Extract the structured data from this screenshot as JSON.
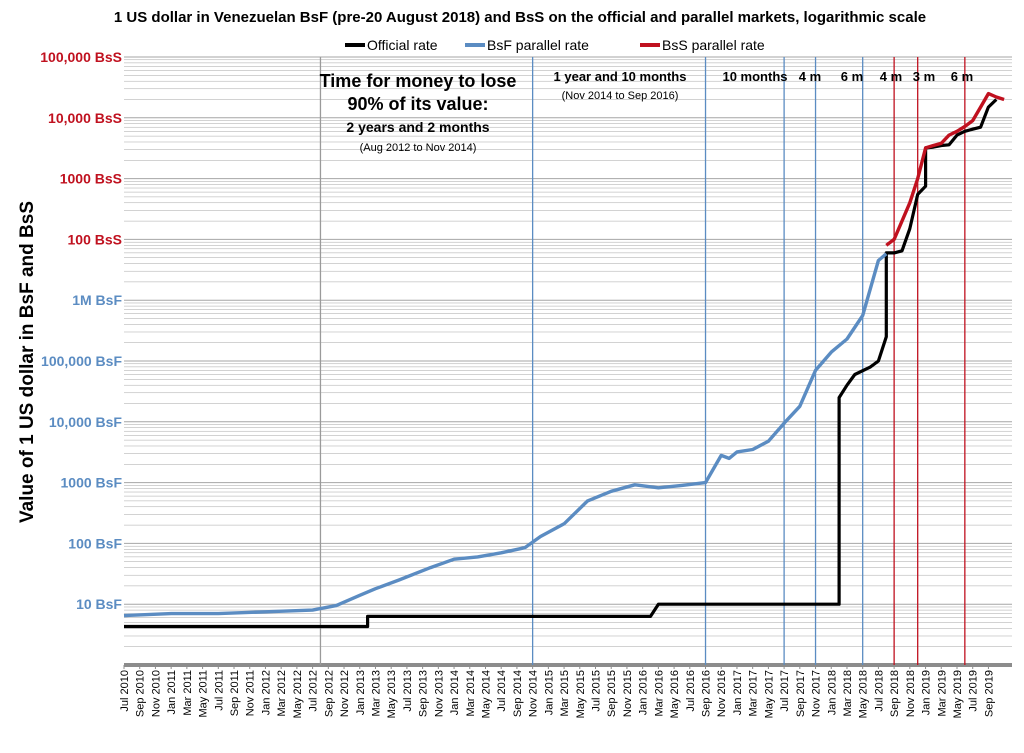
{
  "chart_data": {
    "type": "line",
    "title": "1 US dollar in Venezuelan BsF (pre-20 August 2018) and BsS on the official and parallel markets, logarithmic scale",
    "ylabel": "Value of 1 US dollar in BsF and BsS",
    "xlabel": "",
    "y_scale": "log",
    "ylim_bsf": [
      1,
      10000000000
    ],
    "grid": true,
    "legend_position": "top",
    "colors": {
      "official": "#000000",
      "bsf": "#5b8cc2",
      "bss": "#c0111f",
      "grid": "#a6a6a6",
      "bsf_label": "#5b8cc2",
      "bss_label": "#c0111f"
    },
    "y_ticks_bsf": [
      {
        "label": "10 BsF",
        "value": 10
      },
      {
        "label": "100 BsF",
        "value": 100
      },
      {
        "label": "1000 BsF",
        "value": 1000
      },
      {
        "label": "10,000 BsF",
        "value": 10000
      },
      {
        "label": "100,000 BsF",
        "value": 100000
      },
      {
        "label": "1M BsF",
        "value": 1000000
      }
    ],
    "y_ticks_bss": [
      {
        "label": "100 BsS",
        "value": 10000000
      },
      {
        "label": "1000 BsS",
        "value": 100000000
      },
      {
        "label": "10,000 BsS",
        "value": 1000000000
      },
      {
        "label": "100,000 BsS",
        "value": 10000000000
      }
    ],
    "x_ticks": [
      "Jul 2010",
      "Sep 2010",
      "Nov 2010",
      "Jan 2011",
      "Mar 2011",
      "May 2011",
      "Jul 2011",
      "Sep 2011",
      "Nov 2011",
      "Jan 2012",
      "Mar 2012",
      "May 2012",
      "Jul 2012",
      "Sep 2012",
      "Nov 2012",
      "Jan 2013",
      "Mar 2013",
      "May 2013",
      "Jul 2013",
      "Sep 2013",
      "Nov 2013",
      "Jan 2014",
      "Mar 2014",
      "May 2014",
      "Jul 2014",
      "Sep 2014",
      "Nov 2014",
      "Jan 2015",
      "Mar 2015",
      "May 2015",
      "Jul 2015",
      "Sep 2015",
      "Nov 2015",
      "Jan 2016",
      "Mar 2016",
      "May 2016",
      "Jul 2016",
      "Sep 2016",
      "Nov 2016",
      "Jan 2017",
      "Mar 2017",
      "May 2017",
      "Jul 2017",
      "Sep 2017",
      "Nov 2017",
      "Jan 2018",
      "Mar 2018",
      "May 2018",
      "Jul 2018",
      "Sep 2018",
      "Nov 2018",
      "Jan 2019",
      "Mar 2019",
      "May 2019",
      "Jul 2019",
      "Sep 2019"
    ],
    "series": [
      {
        "name": "Official rate",
        "color": "#000000",
        "x": [
          "2010-07",
          "2013-02",
          "2013-02",
          "2016-02",
          "2016-03",
          "2018-02",
          "2018-02",
          "2018-03",
          "2018-04",
          "2018-06",
          "2018-07",
          "2018-08",
          "2018-08",
          "2018-09",
          "2018-10",
          "2018-11",
          "2018-12",
          "2019-01",
          "2019-01",
          "2019-02",
          "2019-03",
          "2019-04",
          "2019-05",
          "2019-06",
          "2019-07",
          "2019-08",
          "2019-09",
          "2019-10"
        ],
        "values": [
          4.3,
          4.3,
          6.3,
          6.3,
          10,
          10,
          25000,
          40000,
          60000,
          80000,
          100000,
          250000,
          6000000,
          6000000,
          6500000,
          15000000,
          55000000,
          75000000,
          320000000,
          330000000,
          350000000,
          360000000,
          520000000,
          600000000,
          650000000,
          700000000,
          1500000000,
          2000000000
        ]
      },
      {
        "name": "BsF parallel rate",
        "color": "#5b8cc2",
        "x": [
          "2010-07",
          "2011-01",
          "2011-07",
          "2012-01",
          "2012-07",
          "2012-10",
          "2013-01",
          "2013-03",
          "2013-06",
          "2013-10",
          "2014-01",
          "2014-04",
          "2014-07",
          "2014-10",
          "2014-12",
          "2015-03",
          "2015-06",
          "2015-09",
          "2015-12",
          "2016-03",
          "2016-06",
          "2016-09",
          "2016-11",
          "2016-12",
          "2017-01",
          "2017-03",
          "2017-05",
          "2017-07",
          "2017-09",
          "2017-11",
          "2018-01",
          "2018-03",
          "2018-05",
          "2018-07",
          "2018-08"
        ],
        "values": [
          6.5,
          7.0,
          7.0,
          7.5,
          8.0,
          9.5,
          14,
          18,
          25,
          40,
          55,
          60,
          70,
          85,
          130,
          210,
          500,
          720,
          920,
          820,
          900,
          1000,
          2800,
          2500,
          3200,
          3500,
          4800,
          9500,
          18000,
          70000,
          140000,
          230000,
          560000,
          4500000,
          5800000
        ]
      },
      {
        "name": "BsS parallel rate",
        "color": "#c0111f",
        "x": [
          "2018-08",
          "2018-09",
          "2018-10",
          "2018-11",
          "2018-12",
          "2019-01",
          "2019-02",
          "2019-03",
          "2019-04",
          "2019-05",
          "2019-06",
          "2019-07",
          "2019-08",
          "2019-09",
          "2019-10",
          "2019-11"
        ],
        "values": [
          80,
          100,
          200,
          400,
          1000,
          3200,
          3500,
          3800,
          5200,
          6000,
          7200,
          9000,
          15000,
          25000,
          22000,
          20000
        ],
        "value_units": "BsS"
      }
    ],
    "period_lines": [
      {
        "x": "2012-08",
        "color": "#9a9a9a"
      },
      {
        "x": "2014-11",
        "color": "#5b8cc2"
      },
      {
        "x": "2016-09",
        "color": "#5b8cc2"
      },
      {
        "x": "2017-07",
        "color": "#5b8cc2"
      },
      {
        "x": "2017-11",
        "color": "#5b8cc2"
      },
      {
        "x": "2018-05",
        "color": "#5b8cc2"
      },
      {
        "x": "2018-09",
        "color": "#c0111f"
      },
      {
        "x": "2018-12",
        "color": "#c0111f"
      },
      {
        "x": "2019-06",
        "color": "#c0111f"
      }
    ],
    "annotations": {
      "main_line1": "Time for money to lose",
      "main_line2": "90% of its value:",
      "main_line3": "2 years and 2 months",
      "main_line4": "(Aug 2012 to Nov 2014)",
      "p2_line1": "1 year and 10 months",
      "p2_line2": "(Nov 2014  to Sep 2016)",
      "p3": "10 months",
      "p4": "4 m",
      "p5": "6 m",
      "p6": "4 m",
      "p7": "3 m",
      "p8": "6 m"
    }
  }
}
